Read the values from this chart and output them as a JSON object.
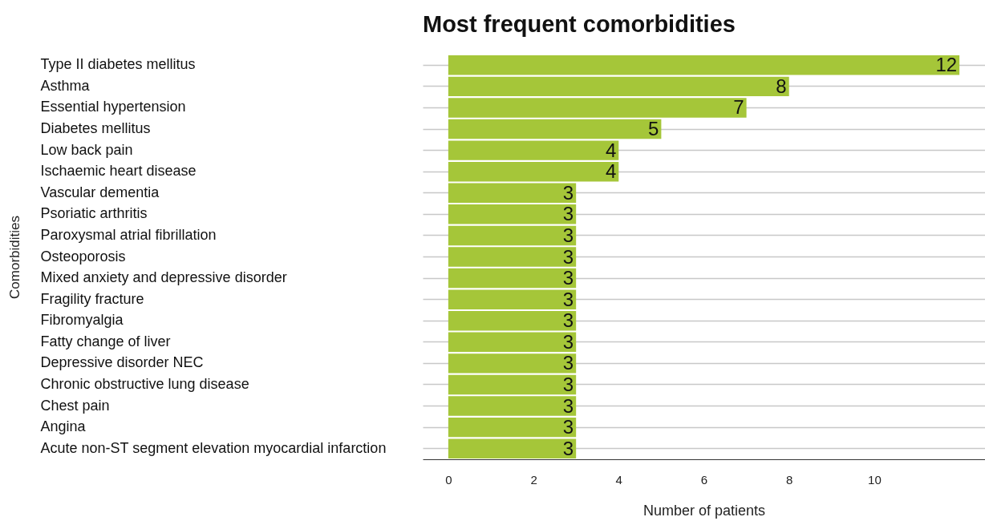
{
  "chart_data": {
    "type": "bar",
    "orientation": "horizontal",
    "title": "Most frequent comorbidities",
    "xlabel": "Number of patients",
    "ylabel": "Comorbidities",
    "categories": [
      "Type II diabetes mellitus",
      "Asthma",
      "Essential hypertension",
      "Diabetes mellitus",
      "Low back pain",
      "Ischaemic heart disease",
      "Vascular dementia",
      "Psoriatic arthritis",
      "Paroxysmal atrial fibrillation",
      "Osteoporosis",
      "Mixed anxiety and depressive disorder",
      "Fragility fracture",
      "Fibromyalgia",
      "Fatty change of liver",
      "Depressive disorder NEC",
      "Chronic obstructive lung disease",
      "Chest pain",
      "Angina",
      "Acute non-ST segment elevation myocardial infarction"
    ],
    "values": [
      12,
      8,
      7,
      5,
      4,
      4,
      3,
      3,
      3,
      3,
      3,
      3,
      3,
      3,
      3,
      3,
      3,
      3,
      3
    ],
    "color": "#a5c639",
    "xlim": [
      -0.6,
      12.6
    ],
    "xticks": [
      0,
      2,
      4,
      6,
      8,
      10
    ],
    "grid": "y",
    "data_labels": true
  }
}
